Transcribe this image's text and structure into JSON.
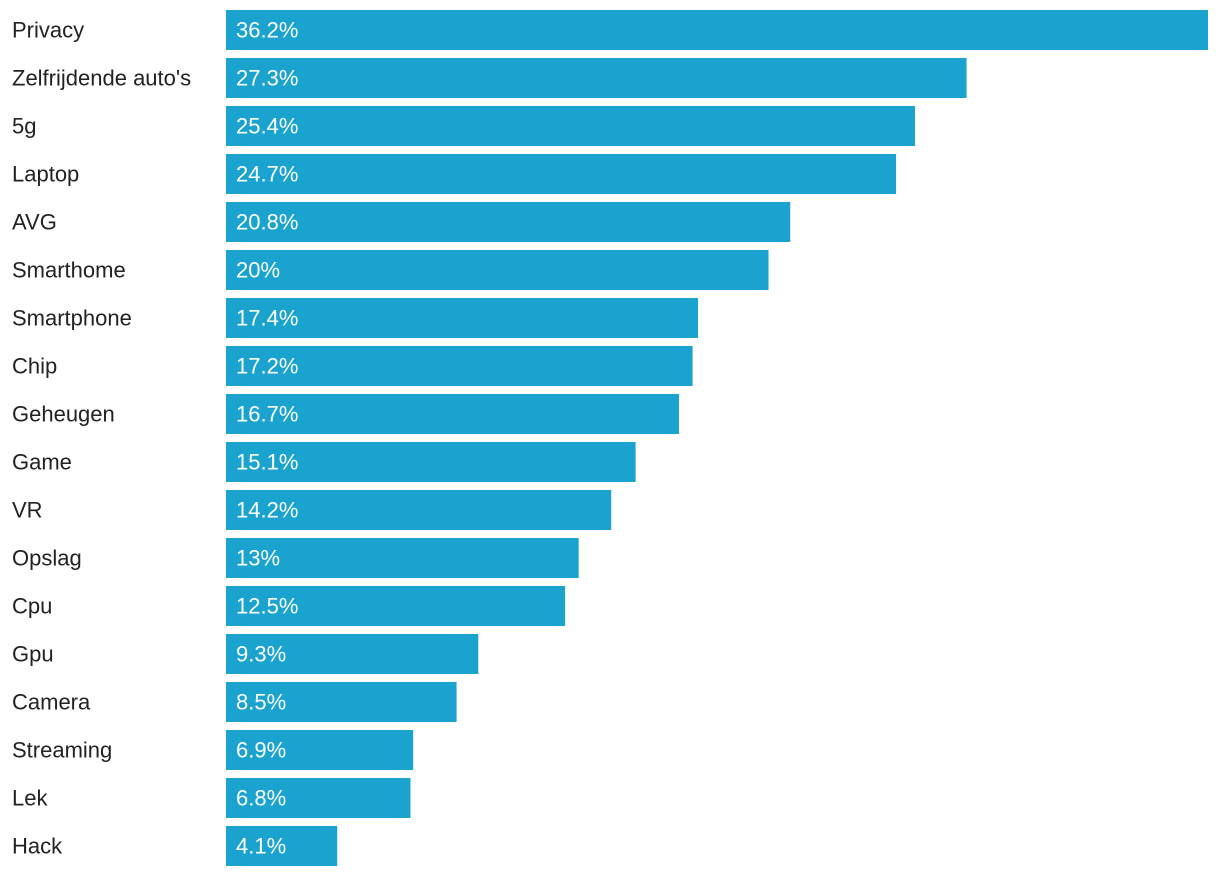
{
  "chart_data": {
    "type": "bar",
    "orientation": "horizontal",
    "title": "",
    "xlabel": "",
    "ylabel": "",
    "xlim": [
      0,
      36.2
    ],
    "grid": false,
    "legend": "none",
    "bar_color": "#1aa3cf",
    "categories": [
      "Privacy",
      "Zelfrijdende auto's",
      "5g",
      "Laptop",
      "AVG",
      "Smarthome",
      "Smartphone",
      "Chip",
      "Geheugen",
      "Game",
      "VR",
      "Opslag",
      "Cpu",
      "Gpu",
      "Camera",
      "Streaming",
      "Lek",
      "Hack"
    ],
    "values": [
      36.2,
      27.3,
      25.4,
      24.7,
      20.8,
      20,
      17.4,
      17.2,
      16.7,
      15.1,
      14.2,
      13,
      12.5,
      9.3,
      8.5,
      6.9,
      6.8,
      4.1
    ],
    "value_labels": [
      "36.2%",
      "27.3%",
      "25.4%",
      "24.7%",
      "20.8%",
      "20%",
      "17.4%",
      "17.2%",
      "16.7%",
      "15.1%",
      "14.2%",
      "13%",
      "12.5%",
      "9.3%",
      "8.5%",
      "6.9%",
      "6.8%",
      "4.1%"
    ]
  }
}
